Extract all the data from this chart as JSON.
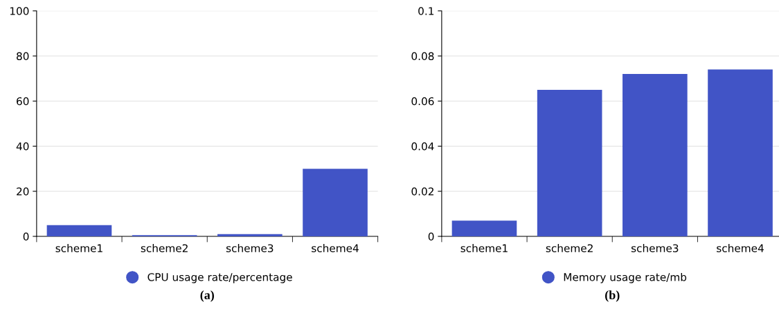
{
  "chart_data": [
    {
      "type": "bar",
      "categories": [
        "scheme1",
        "scheme2",
        "scheme3",
        "scheme4"
      ],
      "series": [
        {
          "name": "CPU usage rate/percentage",
          "color": "#4154c6",
          "values": [
            5,
            0.5,
            1,
            30
          ]
        }
      ],
      "ylim": [
        0,
        100
      ],
      "yticks": [
        0,
        20,
        40,
        60,
        80,
        100
      ],
      "grid": "y",
      "legend": "bottom",
      "annotations": [
        "(a)"
      ]
    },
    {
      "type": "bar",
      "categories": [
        "scheme1",
        "scheme2",
        "scheme3",
        "scheme4"
      ],
      "series": [
        {
          "name": "Memory usage rate/mb",
          "color": "#4154c6",
          "values": [
            0.007,
            0.065,
            0.072,
            0.074
          ]
        }
      ],
      "ylim": [
        0,
        0.1
      ],
      "yticks": [
        0,
        0.02,
        0.04,
        0.06,
        0.08,
        0.1
      ],
      "grid": "y",
      "legend": "bottom",
      "annotations": [
        "(b)"
      ]
    }
  ]
}
